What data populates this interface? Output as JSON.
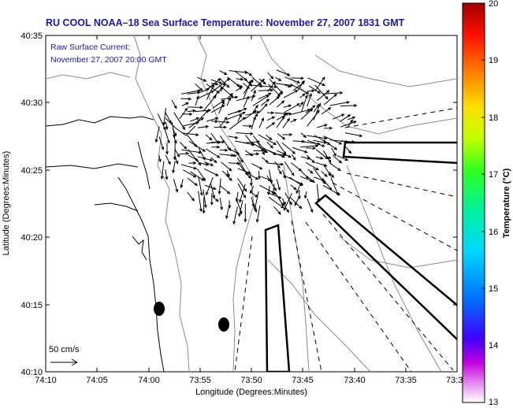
{
  "title": "RU COOL  NOAA–18  Sea Surface Temperature:  November 27, 2007 1831 GMT",
  "current_label": {
    "line1": "Raw Surface Current:",
    "line2": "November 27, 2007 20:00 GMT"
  },
  "scale_label": "50 cm/s",
  "axes": {
    "xlabel": "Longitude (Degrees:Minutes)",
    "ylabel": "Latitude (Degrees:Minutes)",
    "x_ticks": [
      "74:10",
      "74:05",
      "74:00",
      "73:55",
      "73:50",
      "73:45",
      "73:40",
      "73:35",
      "73:3"
    ],
    "y_ticks": [
      "40:35",
      "40:30",
      "40:25",
      "40:20",
      "40:15",
      "40:10"
    ]
  },
  "colorbar": {
    "label": "Temperature (°C)",
    "ticks": [
      "20",
      "19",
      "18",
      "17",
      "16",
      "15",
      "14",
      "13"
    ],
    "min": 13,
    "max": 20
  }
}
